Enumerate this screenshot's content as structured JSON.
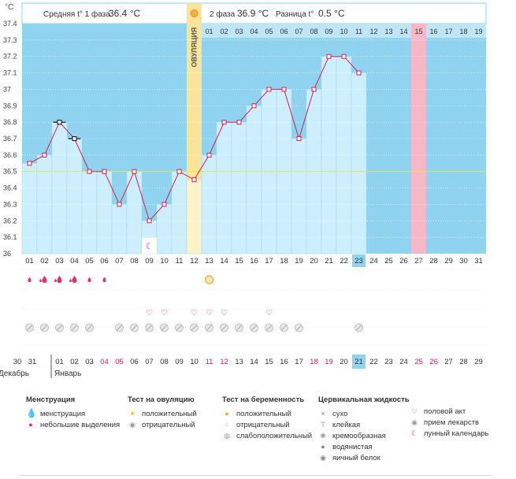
{
  "unit": "°C",
  "header": {
    "phase1_label": "Средняя t° 1 фаза",
    "phase1_value": "36.4 °C",
    "phase2_label": "2 фаза",
    "phase2_value": "36.9 °C",
    "diff_label": "Разница t°",
    "diff_value": "0.5 °C",
    "ovulation_label": "ОВУЛЯЦИЯ"
  },
  "colors": {
    "background": "#8fd3f0",
    "bar": "#cdeefd",
    "line": "#d6204f",
    "ovulation": "#f9e49a",
    "period_marker": "#f7b8c6",
    "coverline": "#e8e25c",
    "highlight": "#8fd3f0"
  },
  "chart_data": {
    "type": "line",
    "x": [
      "01",
      "02",
      "03",
      "04",
      "05",
      "06",
      "07",
      "08",
      "09",
      "10",
      "11",
      "12",
      "13",
      "14",
      "15",
      "16",
      "17",
      "18",
      "19",
      "20",
      "21",
      "22",
      "23"
    ],
    "series": [
      {
        "values": [
          36.55,
          36.6,
          36.8,
          36.7,
          36.5,
          36.5,
          36.3,
          36.5,
          36.2,
          36.3,
          36.5,
          36.45,
          36.6,
          36.8,
          36.8,
          36.9,
          37.0,
          37.0,
          36.7,
          37.0,
          37.2,
          37.2,
          37.1
        ]
      }
    ],
    "ylim": [
      36,
      37.4
    ],
    "yticks": [
      "36",
      "36.1",
      "36.2",
      "36.3",
      "36.4",
      "36.5",
      "36.6",
      "36.7",
      "36.8",
      "36.9",
      "37",
      "37.1",
      "37.2",
      "37.3",
      "37.4"
    ],
    "cycle_days": [
      "01",
      "02",
      "03",
      "04",
      "05",
      "06",
      "07",
      "08",
      "09",
      "10",
      "11",
      "12",
      "13",
      "14",
      "15",
      "16",
      "17",
      "18",
      "19",
      "20",
      "21",
      "22",
      "23",
      "24",
      "25",
      "26",
      "27",
      "28",
      "29",
      "30",
      "31"
    ],
    "luteal_days": [
      "01",
      "02",
      "03",
      "04",
      "05",
      "06",
      "07",
      "08",
      "09",
      "10",
      "11",
      "12",
      "13",
      "14",
      "15",
      "16",
      "17",
      "18",
      "19"
    ],
    "dates": [
      {
        "d": "30",
        "red": false
      },
      {
        "d": "31",
        "red": false
      },
      {
        "d": "01",
        "red": false
      },
      {
        "d": "02",
        "red": false
      },
      {
        "d": "03",
        "red": false
      },
      {
        "d": "04",
        "red": true
      },
      {
        "d": "05",
        "red": true
      },
      {
        "d": "06",
        "red": false
      },
      {
        "d": "07",
        "red": false
      },
      {
        "d": "08",
        "red": false
      },
      {
        "d": "09",
        "red": false
      },
      {
        "d": "10",
        "red": false
      },
      {
        "d": "11",
        "red": true
      },
      {
        "d": "12",
        "red": true
      },
      {
        "d": "13",
        "red": false
      },
      {
        "d": "14",
        "red": false
      },
      {
        "d": "15",
        "red": false
      },
      {
        "d": "16",
        "red": false
      },
      {
        "d": "17",
        "red": false
      },
      {
        "d": "18",
        "red": true
      },
      {
        "d": "19",
        "red": true
      },
      {
        "d": "20",
        "red": false
      },
      {
        "d": "21",
        "red": false
      },
      {
        "d": "22",
        "red": false
      },
      {
        "d": "23",
        "red": false
      },
      {
        "d": "24",
        "red": false
      },
      {
        "d": "25",
        "red": true
      },
      {
        "d": "26",
        "red": true
      },
      {
        "d": "27",
        "red": false
      },
      {
        "d": "28",
        "red": false
      },
      {
        "d": "29",
        "red": false
      }
    ],
    "month_labels": [
      "Декабрь",
      "Январь"
    ],
    "coverline": 36.5,
    "ovulation_day": 12,
    "period_marker_day": 15,
    "current_day": 23,
    "menstruation_big_days": [
      2,
      3,
      4
    ],
    "menstruation_small_days": [
      1,
      5,
      6
    ],
    "moon_day": 9,
    "ovulation_positive_day": 13,
    "sex_days": [
      9,
      10,
      12,
      13,
      14,
      17
    ],
    "pill_days": [
      1,
      2,
      3,
      4,
      5,
      7,
      8,
      9,
      10,
      11,
      12,
      13,
      14,
      15,
      16,
      17,
      18,
      19,
      23
    ]
  },
  "legend": {
    "menstruation": {
      "title": "Менструация",
      "items": [
        "менструация",
        "небольшие выделения"
      ]
    },
    "ovulation_test": {
      "title": "Тест на овуляцию",
      "items": [
        "положительный",
        "отрицательный"
      ]
    },
    "pregnancy_test": {
      "title": "Тест на беременность",
      "items": [
        "положительный",
        "отрицательный",
        "слабоположительный"
      ]
    },
    "cervical": {
      "title": "Цервикальная жидкость",
      "items": [
        "сухо",
        "клейкая",
        "кремообразная",
        "водянистая",
        "яичный белок"
      ]
    },
    "other": {
      "items": [
        "половой акт",
        "прием лекарств",
        "лунный календарь"
      ]
    }
  }
}
